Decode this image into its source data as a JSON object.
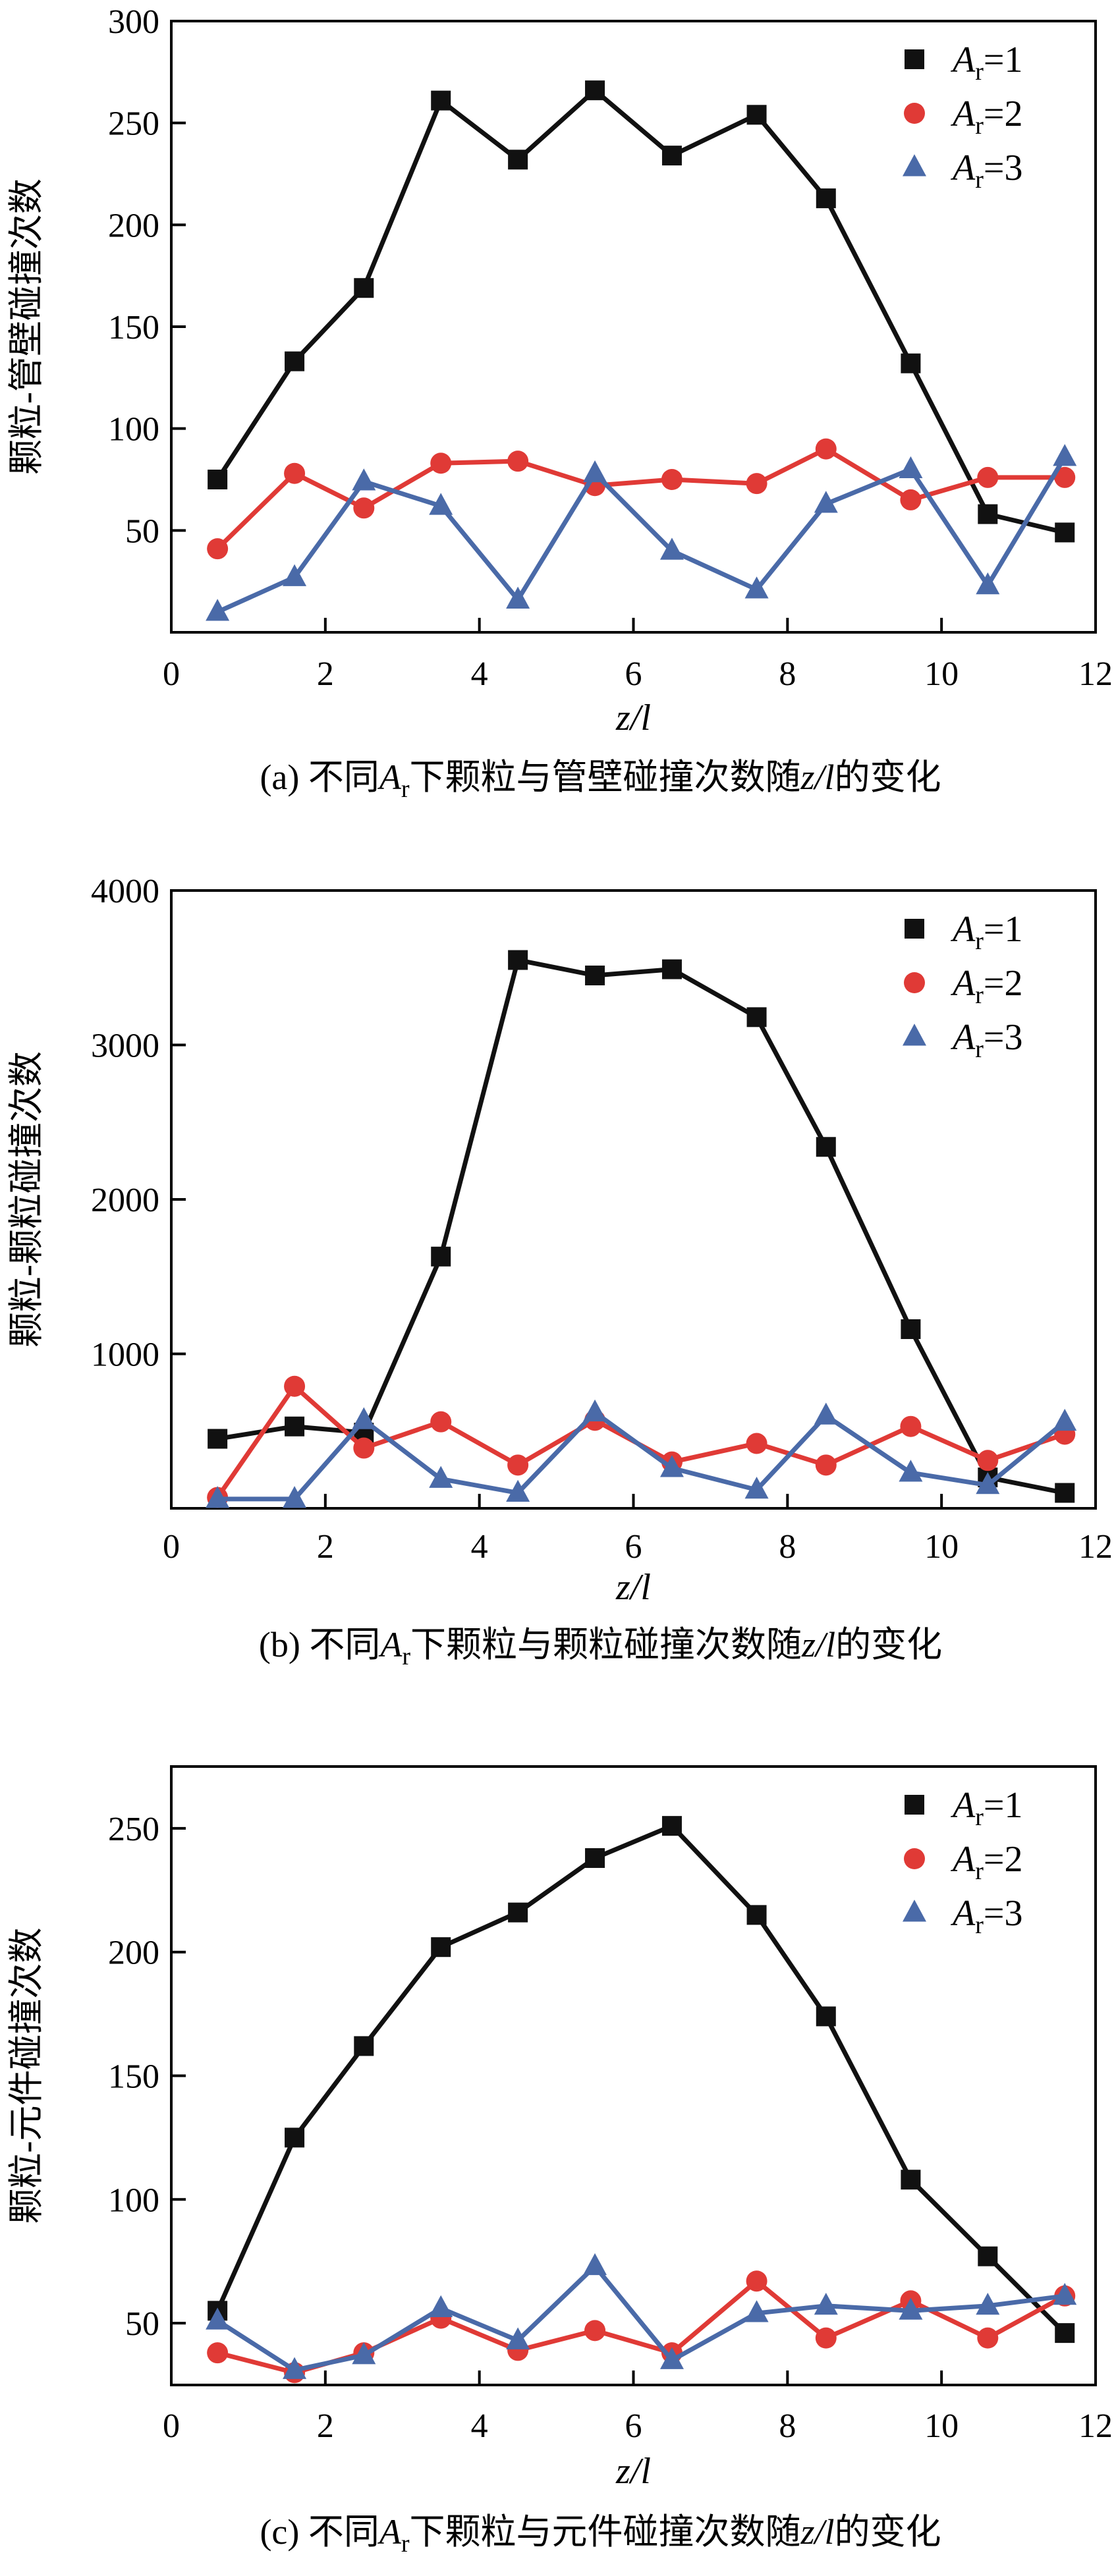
{
  "colors": {
    "series1": "#111111",
    "series2": "#e03a36",
    "series3": "#4a6aa8",
    "axis": "#000000"
  },
  "chart_data": [
    {
      "type": "line",
      "caption": {
        "prefix": "(a) 不同",
        "var_base": "A",
        "var_sub": "r",
        "middle": "下颗粒与管壁碰撞次数随",
        "zl": "z/l",
        "suffix": "的变化"
      },
      "xlabel": "z/l",
      "ylabel": "颗粒-管壁碰撞次数",
      "xlim": [
        0,
        12
      ],
      "ylim": [
        0,
        300
      ],
      "xticks": [
        0,
        2,
        4,
        6,
        8,
        10,
        12
      ],
      "yticks": [
        50,
        100,
        150,
        200,
        250,
        300
      ],
      "x": [
        0.6,
        1.6,
        2.5,
        3.5,
        4.5,
        5.5,
        6.5,
        7.6,
        8.5,
        9.6,
        10.6,
        11.6
      ],
      "legend_position": "top-right",
      "series": [
        {
          "name": "Ar=1",
          "legend_base": "A",
          "legend_sub": "r",
          "legend_tail": "=1",
          "marker": "square",
          "color": "#111111",
          "values": [
            75,
            133,
            169,
            261,
            232,
            266,
            234,
            254,
            213,
            132,
            58,
            49
          ]
        },
        {
          "name": "Ar=2",
          "legend_base": "A",
          "legend_sub": "r",
          "legend_tail": "=2",
          "marker": "circle",
          "color": "#e03a36",
          "values": [
            41,
            78,
            61,
            83,
            84,
            72,
            75,
            73,
            90,
            65,
            76,
            76
          ]
        },
        {
          "name": "Ar=3",
          "legend_base": "A",
          "legend_sub": "r",
          "legend_tail": "=3",
          "marker": "triangle",
          "color": "#4a6aa8",
          "values": [
            10,
            27,
            74,
            62,
            16,
            78,
            40,
            21,
            63,
            80,
            23,
            86
          ]
        }
      ]
    },
    {
      "type": "line",
      "caption": {
        "prefix": "(b) 不同",
        "var_base": "A",
        "var_sub": "r",
        "middle": "下颗粒与颗粒碰撞次数随",
        "zl": "z/l",
        "suffix": "的变化"
      },
      "xlabel": "z/l",
      "ylabel": "颗粒-颗粒碰撞次数",
      "xlim": [
        0,
        12
      ],
      "ylim": [
        0,
        4000
      ],
      "xticks": [
        0,
        2,
        4,
        6,
        8,
        10,
        12
      ],
      "yticks": [
        1000,
        2000,
        3000,
        4000
      ],
      "x": [
        0.6,
        1.6,
        2.5,
        3.5,
        4.5,
        5.5,
        6.5,
        7.6,
        8.5,
        9.6,
        10.6,
        11.6
      ],
      "legend_position": "top-right",
      "series": [
        {
          "name": "Ar=1",
          "legend_base": "A",
          "legend_sub": "r",
          "legend_tail": "=1",
          "marker": "square",
          "color": "#111111",
          "values": [
            450,
            530,
            490,
            1630,
            3550,
            3450,
            3490,
            3180,
            2340,
            1160,
            200,
            100
          ]
        },
        {
          "name": "Ar=2",
          "legend_base": "A",
          "legend_sub": "r",
          "legend_tail": "=2",
          "marker": "circle",
          "color": "#e03a36",
          "values": [
            70,
            790,
            390,
            560,
            280,
            570,
            300,
            420,
            280,
            530,
            310,
            480
          ]
        },
        {
          "name": "Ar=3",
          "legend_base": "A",
          "legend_sub": "r",
          "legend_tail": "=3",
          "marker": "triangle",
          "color": "#4a6aa8",
          "values": [
            60,
            60,
            570,
            190,
            100,
            620,
            260,
            120,
            600,
            230,
            150,
            560
          ]
        }
      ]
    },
    {
      "type": "line",
      "caption": {
        "prefix": "(c) 不同",
        "var_base": "A",
        "var_sub": "r",
        "middle": "下颗粒与元件碰撞次数随",
        "zl": "z/l",
        "suffix": "的变化"
      },
      "xlabel": "z/l",
      "ylabel": "颗粒-元件碰撞次数",
      "xlim": [
        0,
        12
      ],
      "ylim": [
        25,
        275
      ],
      "xticks": [
        0,
        2,
        4,
        6,
        8,
        10,
        12
      ],
      "yticks": [
        50,
        100,
        150,
        200,
        250
      ],
      "x": [
        0.6,
        1.6,
        2.5,
        3.5,
        4.5,
        5.5,
        6.5,
        7.6,
        8.5,
        9.6,
        10.6,
        11.6
      ],
      "legend_position": "top-right",
      "series": [
        {
          "name": "Ar=1",
          "legend_base": "A",
          "legend_sub": "r",
          "legend_tail": "=1",
          "marker": "square",
          "color": "#111111",
          "values": [
            55,
            125,
            162,
            202,
            216,
            238,
            251,
            215,
            174,
            108,
            77,
            46
          ]
        },
        {
          "name": "Ar=2",
          "legend_base": "A",
          "legend_sub": "r",
          "legend_tail": "=2",
          "marker": "circle",
          "color": "#e03a36",
          "values": [
            38,
            30,
            38,
            52,
            39,
            47,
            38,
            67,
            44,
            59,
            44,
            61
          ]
        },
        {
          "name": "Ar=3",
          "legend_base": "A",
          "legend_sub": "r",
          "legend_tail": "=3",
          "marker": "triangle",
          "color": "#4a6aa8",
          "values": [
            51,
            31,
            37,
            56,
            43,
            73,
            35,
            54,
            57,
            55,
            57,
            61
          ]
        }
      ]
    }
  ]
}
